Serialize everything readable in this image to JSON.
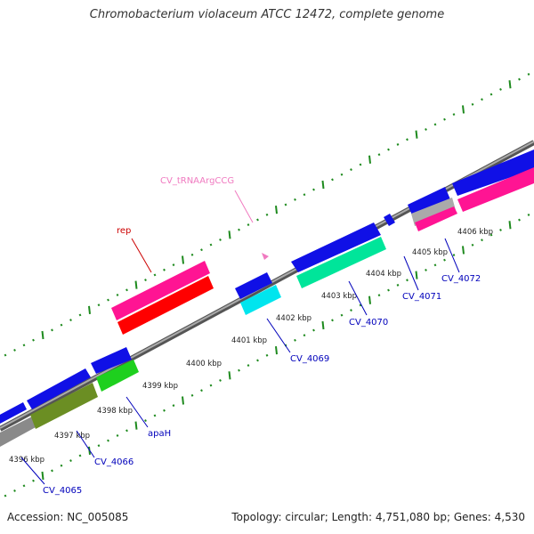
{
  "title": "Chromobacterium violaceum ATCC 12472, complete genome",
  "footer": {
    "accession": "Accession: NC_005085",
    "summary": "Topology: circular; Length: 4,751,080 bp; Genes: 4,530"
  },
  "colors": {
    "backbone": "#888888",
    "tick_green": "#1e8a1e",
    "label_blue": "#0000bb",
    "rep_red": "#cc0000",
    "trna_pink": "#f07ac0",
    "feature_blue": "#1010e6",
    "feature_red": "#ff0000",
    "feature_magenta": "#ff1493",
    "feature_cyan": "#00e5ee",
    "feature_mint": "#00e59a",
    "feature_olive": "#6b8e23",
    "feature_green": "#1ed01e",
    "feature_gray": "#8a8a8a"
  },
  "ticks": [
    {
      "label": "4396 kbp"
    },
    {
      "label": "4397 kbp"
    },
    {
      "label": "4398 kbp"
    },
    {
      "label": "4399 kbp"
    },
    {
      "label": "4400 kbp"
    },
    {
      "label": "4401 kbp"
    },
    {
      "label": "4402 kbp"
    },
    {
      "label": "4403 kbp"
    },
    {
      "label": "4404 kbp"
    },
    {
      "label": "4405 kbp"
    },
    {
      "label": "4406 kbp"
    }
  ],
  "gene_labels": [
    {
      "name": "CV_4065",
      "color": "label_blue"
    },
    {
      "name": "CV_4066",
      "color": "label_blue"
    },
    {
      "name": "apaH",
      "color": "label_blue"
    },
    {
      "name": "CV_4069",
      "color": "label_blue"
    },
    {
      "name": "CV_4070",
      "color": "label_blue"
    },
    {
      "name": "CV_4071",
      "color": "label_blue"
    },
    {
      "name": "CV_4072",
      "color": "label_blue"
    },
    {
      "name": "rep",
      "color": "rep_red"
    },
    {
      "name": "CV_tRNAArgCCG",
      "color": "trna_pink"
    }
  ]
}
